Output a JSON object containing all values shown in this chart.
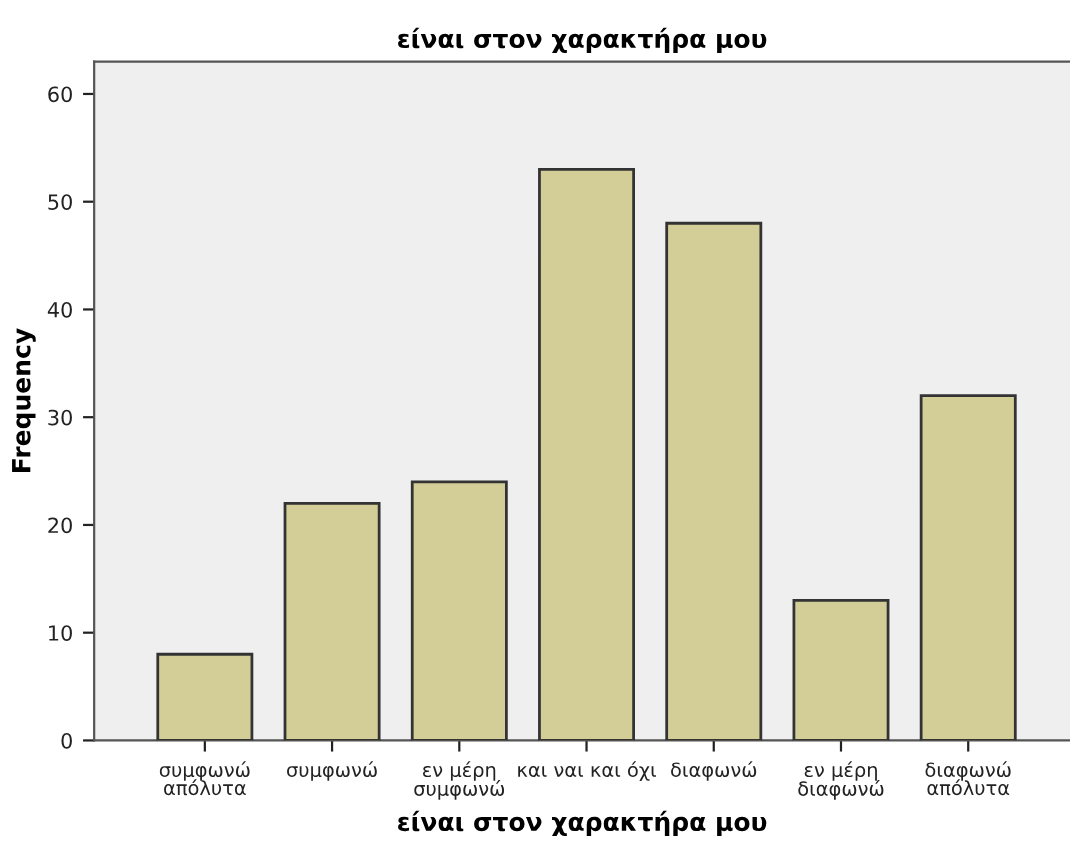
{
  "chart_data": {
    "type": "bar",
    "title": "είναι στον χαρακτήρα μου",
    "xlabel": "είναι στον χαρακτήρα μου",
    "ylabel": "Frequency",
    "categories": [
      "συμφωνώ\nαπόλυτα",
      "συμφωνώ",
      "εν μέρη\nσυμφωνώ",
      "και ναι και όχι",
      "διαφωνώ",
      "εν μέρη\nδιαφωνώ",
      "διαφωνώ\nαπόλυτα"
    ],
    "values": [
      8,
      22,
      24,
      53,
      48,
      13,
      32
    ],
    "color": "#d3ce97",
    "ylim": [
      0,
      63
    ],
    "yticks": [
      0,
      10,
      20,
      30,
      40,
      50,
      60
    ],
    "grid": false,
    "legend": false
  }
}
